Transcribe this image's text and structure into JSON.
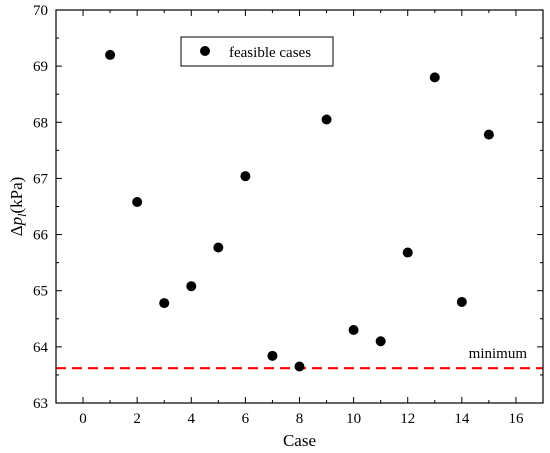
{
  "chart_data": {
    "type": "scatter",
    "xlabel": "Case",
    "ylabel": {
      "prefix": "Δ",
      "var": "p",
      "subscript": "l",
      "suffix": "(kPa)"
    },
    "xlim": [
      -1,
      17
    ],
    "ylim": [
      63,
      70
    ],
    "xticks": [
      0,
      2,
      4,
      6,
      8,
      10,
      12,
      14,
      16
    ],
    "yticks": [
      63,
      64,
      65,
      66,
      67,
      68,
      69,
      70
    ],
    "grid": false,
    "legend": {
      "placement": "top-center",
      "entries": [
        "feasible cases"
      ]
    },
    "series": [
      {
        "name": "feasible cases",
        "marker": "filled-circle",
        "color": "#000000",
        "x": [
          1,
          2,
          3,
          4,
          5,
          6,
          7,
          8,
          9,
          10,
          11,
          12,
          13,
          14,
          15
        ],
        "y": [
          69.2,
          66.58,
          64.78,
          65.08,
          65.77,
          67.04,
          63.84,
          63.65,
          68.05,
          64.3,
          64.1,
          65.68,
          68.8,
          64.8,
          67.78
        ]
      }
    ],
    "reference_lines": [
      {
        "label": "minimum",
        "y": 63.62,
        "style": "dashed",
        "color": "#ff0000"
      }
    ]
  }
}
